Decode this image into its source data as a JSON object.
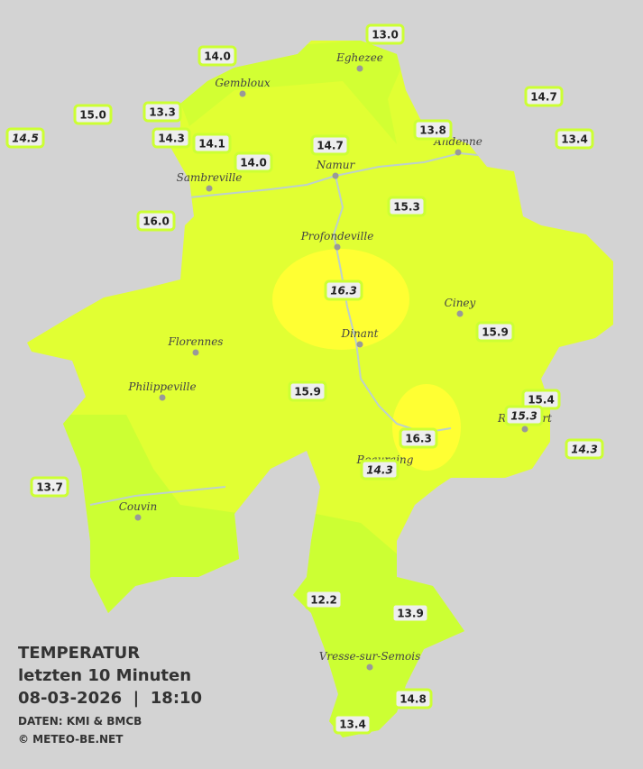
{
  "stations": [
    {
      "value": "13.0"
    },
    {
      "value": "14.0"
    },
    {
      "value": "14.7"
    },
    {
      "value": "15.0"
    },
    {
      "value": "13.3"
    },
    {
      "value": "14.5"
    },
    {
      "value": "14.3"
    },
    {
      "value": "14.1"
    },
    {
      "value": "13.8"
    },
    {
      "value": "13.4"
    },
    {
      "value": "14.7"
    },
    {
      "value": "14.0"
    },
    {
      "value": "15.3"
    },
    {
      "value": "16.0"
    },
    {
      "value": "16.3"
    },
    {
      "value": "15.9"
    },
    {
      "value": "15.9"
    },
    {
      "value": "15.4"
    },
    {
      "value": "15.3"
    },
    {
      "value": "16.3"
    },
    {
      "value": "14.3"
    },
    {
      "value": "14.3"
    },
    {
      "value": "13.7"
    },
    {
      "value": "12.2"
    },
    {
      "value": "13.9"
    },
    {
      "value": "14.8"
    },
    {
      "value": "13.4"
    }
  ],
  "towns": [
    {
      "name": "Eghezee"
    },
    {
      "name": "Gembloux"
    },
    {
      "name": "Andenne"
    },
    {
      "name": "Namur"
    },
    {
      "name": "Sambreville"
    },
    {
      "name": "Profondeville"
    },
    {
      "name": "Ciney"
    },
    {
      "name": "Dinant"
    },
    {
      "name": "Florennes"
    },
    {
      "name": "Philippeville"
    },
    {
      "name": "Rochefort"
    },
    {
      "name": "Beauraing"
    },
    {
      "name": "Couvin"
    },
    {
      "name": "Vresse-sur-Semois"
    }
  ],
  "legend": {
    "title": "TEMPERATUR",
    "period": "letzten 10 Minuten",
    "datetime": "08-03-2026  |  18:10",
    "source": "DATEN: KMI & BMCB",
    "copyright": "© METEO-BE.NET"
  }
}
